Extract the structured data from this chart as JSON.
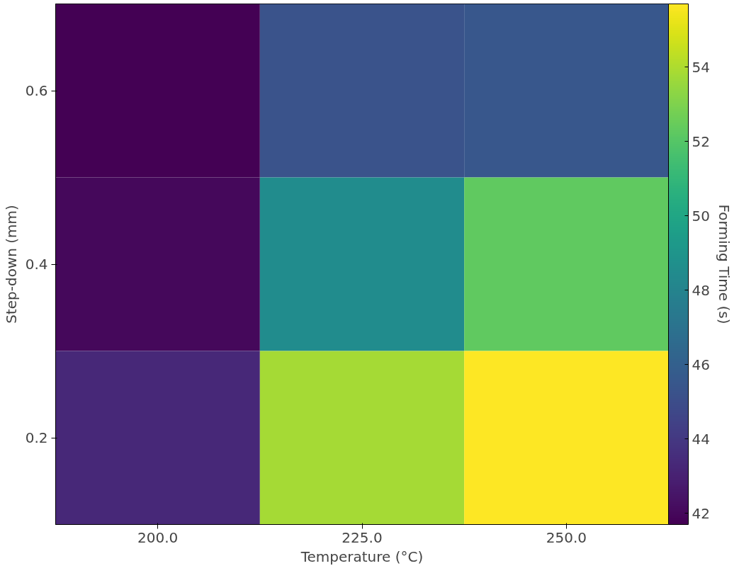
{
  "chart_data": {
    "type": "heatmap",
    "xlabel": "Temperature (°C)",
    "ylabel": "Step-down (mm)",
    "clabel": "Forming Time (s)",
    "categories": [
      "200.0",
      "225.0",
      "250.0"
    ],
    "y_categories": [
      "0.6",
      "0.4",
      "0.2"
    ],
    "cells": [
      [
        41.7,
        45.3,
        45.5
      ],
      [
        42.0,
        48.5,
        52.3
      ],
      [
        43.3,
        53.8,
        55.7
      ]
    ],
    "clim": [
      41.7,
      55.7
    ],
    "cticks": [
      42,
      44,
      46,
      48,
      50,
      52,
      54
    ]
  }
}
